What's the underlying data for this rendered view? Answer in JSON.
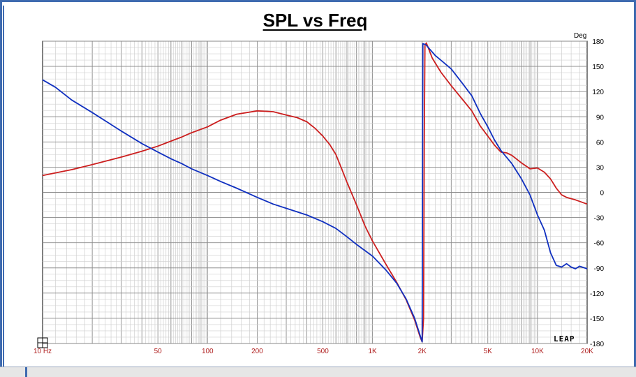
{
  "chart_data": {
    "type": "line",
    "title": "SPL vs Freq",
    "x_scale": "log",
    "xlim": [
      10,
      20000
    ],
    "x_tick_labels": [
      {
        "value": 10,
        "label": "10 Hz"
      },
      {
        "value": 50,
        "label": "50"
      },
      {
        "value": 100,
        "label": "100"
      },
      {
        "value": 200,
        "label": "200"
      },
      {
        "value": 500,
        "label": "500"
      },
      {
        "value": 1000,
        "label": "1K"
      },
      {
        "value": 2000,
        "label": "2K"
      },
      {
        "value": 5000,
        "label": "5K"
      },
      {
        "value": 10000,
        "label": "10K"
      },
      {
        "value": 20000,
        "label": "20K"
      }
    ],
    "y_right_label": "Deg",
    "ylim": [
      -180,
      180
    ],
    "y_ticks": [
      180,
      150,
      120,
      90,
      60,
      30,
      0,
      -30,
      -60,
      -90,
      -120,
      -150,
      -180
    ],
    "grid": true,
    "logo_text": "LEAP",
    "colors": {
      "red": "#cc1f1f",
      "blue": "#1030c0",
      "tick_text": "#b02020"
    },
    "series": [
      {
        "color": "red",
        "points": [
          [
            10,
            20
          ],
          [
            15,
            27
          ],
          [
            20,
            33
          ],
          [
            30,
            42
          ],
          [
            40,
            49
          ],
          [
            50,
            55
          ],
          [
            60,
            61
          ],
          [
            70,
            66
          ],
          [
            80,
            71
          ],
          [
            100,
            78
          ],
          [
            120,
            86
          ],
          [
            150,
            93
          ],
          [
            200,
            97
          ],
          [
            250,
            96
          ],
          [
            300,
            92
          ],
          [
            350,
            89
          ],
          [
            400,
            84
          ],
          [
            450,
            76
          ],
          [
            500,
            67
          ],
          [
            550,
            57
          ],
          [
            600,
            45
          ],
          [
            650,
            28
          ],
          [
            700,
            12
          ],
          [
            800,
            -15
          ],
          [
            900,
            -40
          ],
          [
            1000,
            -58
          ],
          [
            1200,
            -85
          ],
          [
            1400,
            -107
          ],
          [
            1600,
            -128
          ],
          [
            1800,
            -152
          ],
          [
            1950,
            -173
          ],
          [
            2000,
            -178
          ],
          [
            2040,
            -150
          ],
          [
            2060,
            60
          ],
          [
            2080,
            175
          ],
          [
            2120,
            178
          ],
          [
            2300,
            160
          ],
          [
            2600,
            143
          ],
          [
            3000,
            127
          ],
          [
            3500,
            111
          ],
          [
            4000,
            97
          ],
          [
            4500,
            79
          ],
          [
            5000,
            67
          ],
          [
            5500,
            56
          ],
          [
            6000,
            48
          ],
          [
            6500,
            47
          ],
          [
            7000,
            44
          ],
          [
            8000,
            35
          ],
          [
            9000,
            28
          ],
          [
            10000,
            29
          ],
          [
            11000,
            24
          ],
          [
            12000,
            16
          ],
          [
            13000,
            5
          ],
          [
            14000,
            -3
          ],
          [
            15000,
            -6
          ],
          [
            17000,
            -9
          ],
          [
            20000,
            -14
          ]
        ]
      },
      {
        "color": "blue",
        "points": [
          [
            10,
            134
          ],
          [
            12,
            125
          ],
          [
            15,
            110
          ],
          [
            20,
            95
          ],
          [
            25,
            83
          ],
          [
            30,
            73
          ],
          [
            40,
            58
          ],
          [
            50,
            48
          ],
          [
            60,
            40
          ],
          [
            70,
            34
          ],
          [
            80,
            28
          ],
          [
            100,
            20
          ],
          [
            120,
            13
          ],
          [
            150,
            5
          ],
          [
            200,
            -6
          ],
          [
            250,
            -14
          ],
          [
            300,
            -19
          ],
          [
            400,
            -27
          ],
          [
            500,
            -35
          ],
          [
            600,
            -43
          ],
          [
            700,
            -53
          ],
          [
            800,
            -62
          ],
          [
            1000,
            -76
          ],
          [
            1200,
            -92
          ],
          [
            1400,
            -108
          ],
          [
            1600,
            -127
          ],
          [
            1800,
            -150
          ],
          [
            2000,
            -178
          ],
          [
            2010,
            0
          ],
          [
            2020,
            177
          ],
          [
            2100,
            176
          ],
          [
            2400,
            163
          ],
          [
            2800,
            152
          ],
          [
            3000,
            147
          ],
          [
            3500,
            130
          ],
          [
            4000,
            115
          ],
          [
            4500,
            94
          ],
          [
            5000,
            78
          ],
          [
            5500,
            62
          ],
          [
            6000,
            50
          ],
          [
            7000,
            34
          ],
          [
            8000,
            16
          ],
          [
            9000,
            -3
          ],
          [
            10000,
            -27
          ],
          [
            11000,
            -45
          ],
          [
            12000,
            -72
          ],
          [
            13000,
            -87
          ],
          [
            14000,
            -89
          ],
          [
            15000,
            -85
          ],
          [
            16000,
            -89
          ],
          [
            17000,
            -91
          ],
          [
            18000,
            -88
          ],
          [
            20000,
            -91
          ]
        ]
      }
    ]
  }
}
